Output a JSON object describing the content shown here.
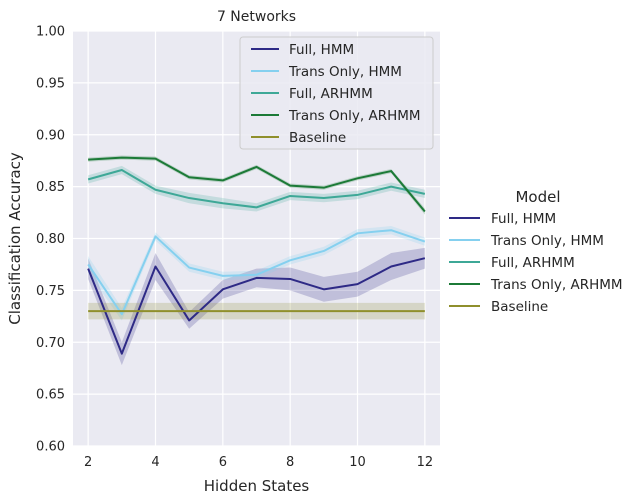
{
  "chart_data": {
    "type": "line",
    "title": "7 Networks",
    "xlabel": "Hidden States",
    "ylabel": "Classification Accuracy",
    "xlim": [
      1.55,
      12.45
    ],
    "ylim": [
      0.6,
      1.0
    ],
    "xticks": [
      "2",
      "4",
      "6",
      "8",
      "10",
      "12"
    ],
    "yticks": [
      "0.60",
      "0.65",
      "0.70",
      "0.75",
      "0.80",
      "0.85",
      "0.90",
      "0.95",
      "1.00"
    ],
    "grid": true,
    "background": "#eaeaf2",
    "x": [
      2,
      3,
      4,
      5,
      6,
      7,
      8,
      9,
      10,
      11,
      12
    ],
    "series": [
      {
        "name": "Full, HMM",
        "color": "#2e2a86",
        "values": [
          0.771,
          0.689,
          0.773,
          0.721,
          0.751,
          0.762,
          0.761,
          0.751,
          0.756,
          0.773,
          0.781
        ],
        "lower": [
          0.761,
          0.678,
          0.76,
          0.713,
          0.742,
          0.753,
          0.75,
          0.739,
          0.744,
          0.76,
          0.771
        ],
        "upper": [
          0.781,
          0.7,
          0.786,
          0.729,
          0.76,
          0.771,
          0.772,
          0.763,
          0.768,
          0.786,
          0.791
        ]
      },
      {
        "name": "Trans Only, HMM",
        "color": "#85d0ef",
        "values": [
          0.775,
          0.727,
          0.802,
          0.772,
          0.764,
          0.765,
          0.779,
          0.788,
          0.805,
          0.808,
          0.797
        ],
        "lower": [
          0.767,
          0.721,
          0.798,
          0.768,
          0.76,
          0.761,
          0.775,
          0.784,
          0.801,
          0.804,
          0.793
        ],
        "upper": [
          0.783,
          0.733,
          0.806,
          0.776,
          0.768,
          0.769,
          0.783,
          0.792,
          0.809,
          0.812,
          0.801
        ]
      },
      {
        "name": "Full, ARHMM",
        "color": "#3ea897",
        "values": [
          0.857,
          0.866,
          0.847,
          0.839,
          0.834,
          0.83,
          0.841,
          0.839,
          0.842,
          0.85,
          0.843
        ],
        "lower": [
          0.853,
          0.862,
          0.843,
          0.834,
          0.829,
          0.826,
          0.837,
          0.835,
          0.838,
          0.846,
          0.839
        ],
        "upper": [
          0.861,
          0.87,
          0.851,
          0.844,
          0.839,
          0.834,
          0.845,
          0.843,
          0.846,
          0.854,
          0.847
        ]
      },
      {
        "name": "Trans Only, ARHMM",
        "color": "#1c7a37",
        "values": [
          0.876,
          0.878,
          0.877,
          0.859,
          0.856,
          0.869,
          0.851,
          0.849,
          0.858,
          0.865,
          0.826
        ],
        "lower": [
          0.874,
          0.876,
          0.875,
          0.857,
          0.854,
          0.867,
          0.849,
          0.847,
          0.856,
          0.863,
          0.823
        ],
        "upper": [
          0.878,
          0.88,
          0.879,
          0.861,
          0.858,
          0.871,
          0.853,
          0.851,
          0.86,
          0.867,
          0.829
        ]
      },
      {
        "name": "Baseline",
        "color": "#8f8f2c",
        "values": [
          0.73,
          0.73,
          0.73,
          0.73,
          0.73,
          0.73,
          0.73,
          0.73,
          0.73,
          0.73,
          0.73
        ],
        "lower": [
          0.722,
          0.722,
          0.722,
          0.722,
          0.722,
          0.722,
          0.722,
          0.722,
          0.722,
          0.722,
          0.722
        ],
        "upper": [
          0.738,
          0.738,
          0.738,
          0.738,
          0.738,
          0.738,
          0.738,
          0.738,
          0.738,
          0.738,
          0.738
        ]
      }
    ],
    "legend_inside": {
      "placement": "top-right"
    },
    "legend_outside": {
      "title": "Model",
      "placement": "right"
    }
  }
}
